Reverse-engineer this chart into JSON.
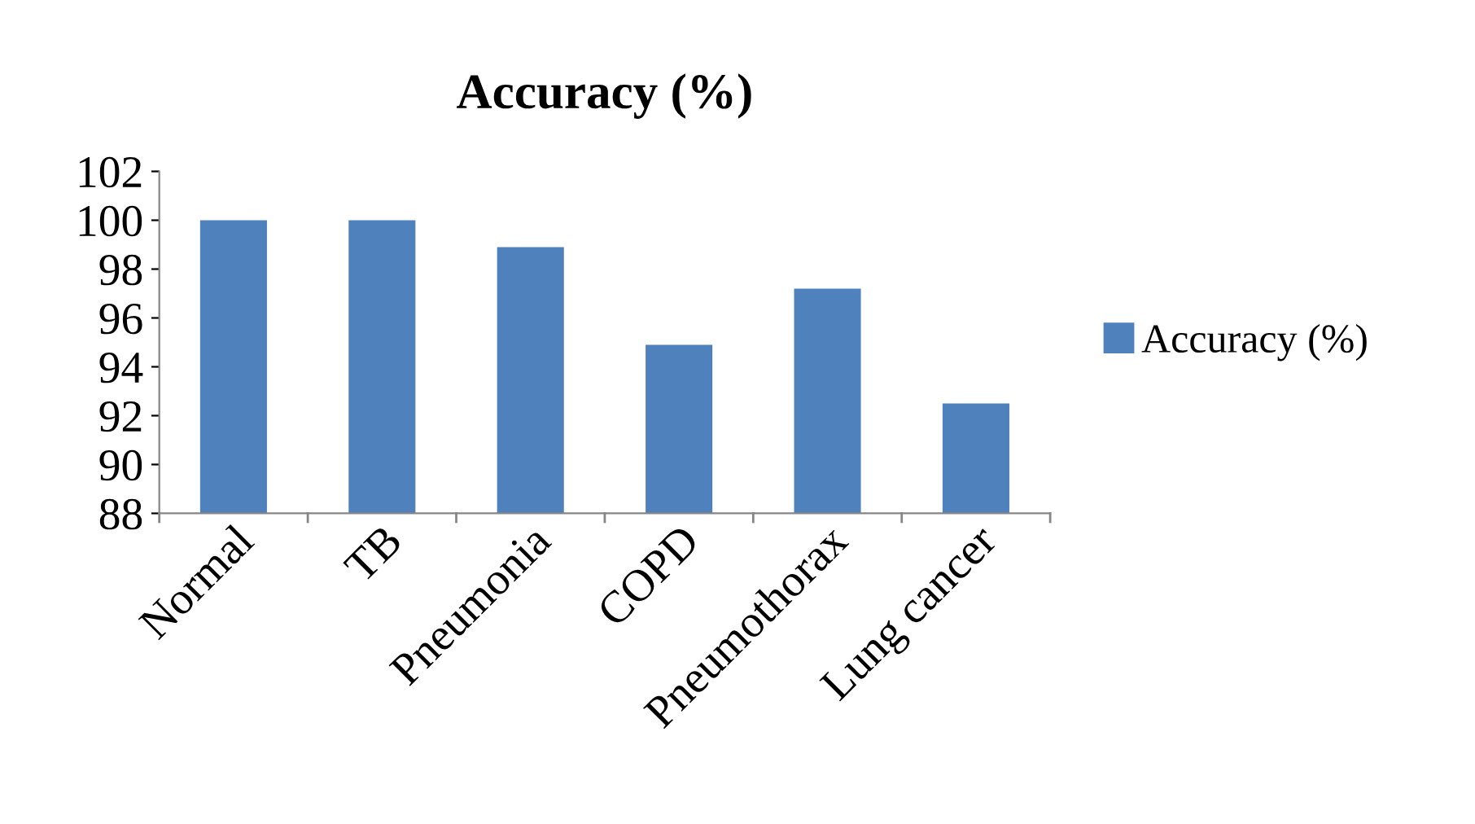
{
  "chart_data": {
    "type": "bar",
    "title": "Accuracy (%)",
    "categories": [
      "Normal",
      "TB",
      "Pneumonia",
      "COPD",
      "Pneumothorax",
      "Lung cancer"
    ],
    "series": [
      {
        "name": "Accuracy (%)",
        "color": "#4f81bd",
        "values": [
          100,
          100,
          98.9,
          94.9,
          97.2,
          92.5
        ]
      }
    ],
    "ylim": [
      88,
      102
    ],
    "yticks": [
      88,
      90,
      92,
      94,
      96,
      98,
      100,
      102
    ],
    "grid": false,
    "legend": "right"
  }
}
